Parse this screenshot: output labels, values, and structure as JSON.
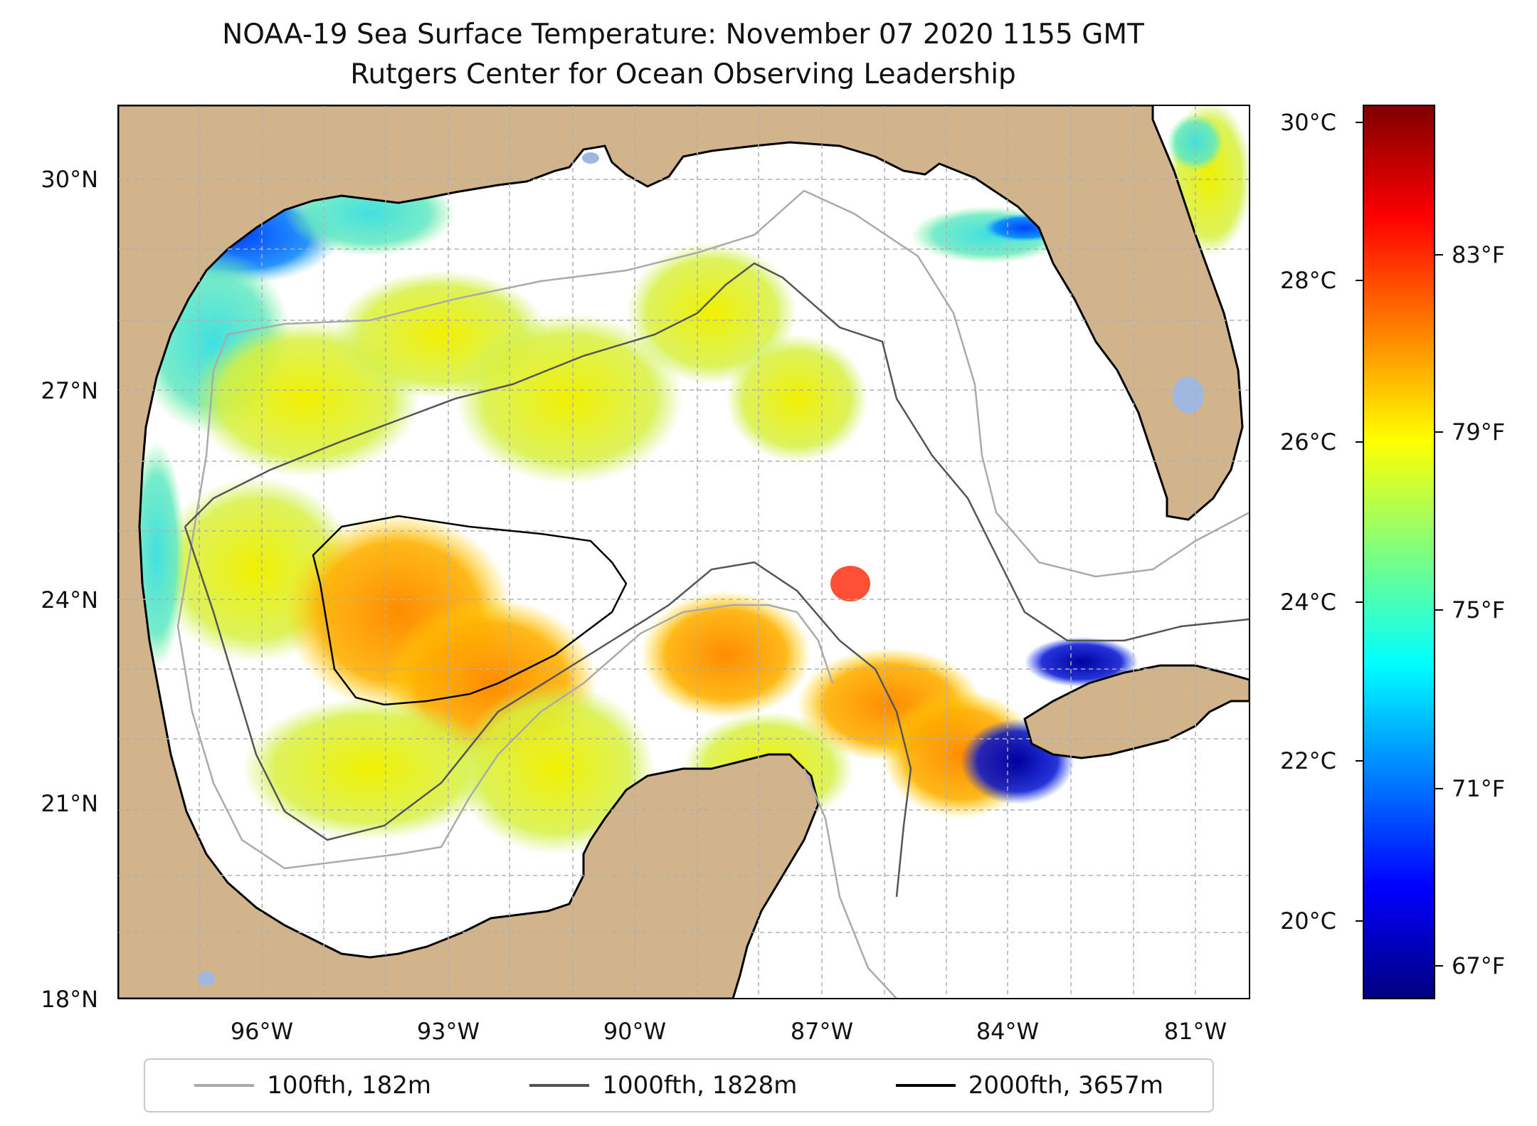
{
  "title": "NOAA-19 Sea Surface Temperature: November 07 2020 1155 GMT",
  "subtitle": "Rutgers Center for Ocean Observing Leadership",
  "lat_labels": [
    {
      "label": "30°N",
      "lat": 30
    },
    {
      "label": "27°N",
      "lat": 27
    },
    {
      "label": "24°N",
      "lat": 24
    },
    {
      "label": "21°N",
      "lat": 21
    },
    {
      "label": "18°N",
      "lat": 18
    }
  ],
  "lon_labels": [
    {
      "label": "96°W",
      "lon": -96
    },
    {
      "label": "93°W",
      "lon": -93
    },
    {
      "label": "90°W",
      "lon": -90
    },
    {
      "label": "87°W",
      "lon": -87
    },
    {
      "label": "84°W",
      "lon": -84
    },
    {
      "label": "81°W",
      "lon": -81
    }
  ],
  "extent": {
    "lon_min": -98.3,
    "lon_max": -80.2,
    "lat_min": 18,
    "lat_max": 31
  },
  "colorbar": {
    "range_c": [
      19,
      30.2
    ],
    "celsius_ticks": [
      {
        "label": "30°C",
        "value": 30
      },
      {
        "label": "28°C",
        "value": 28
      },
      {
        "label": "26°C",
        "value": 26
      },
      {
        "label": "24°C",
        "value": 24
      },
      {
        "label": "22°C",
        "value": 22
      },
      {
        "label": "20°C",
        "value": 20
      }
    ],
    "fahrenheit_ticks": [
      {
        "label": "83°F",
        "value_f": 83
      },
      {
        "label": "79°F",
        "value_f": 79
      },
      {
        "label": "75°F",
        "value_f": 75
      },
      {
        "label": "71°F",
        "value_f": 71
      },
      {
        "label": "67°F",
        "value_f": 67
      }
    ],
    "colormap": [
      "#00007f",
      "#0000ff",
      "#007fff",
      "#00ffff",
      "#7fff7f",
      "#ffff00",
      "#ff7f00",
      "#ff0000",
      "#7f0000"
    ]
  },
  "legend": [
    {
      "label": "100fth, 182m",
      "color": "#aaaaaa"
    },
    {
      "label": "1000fth, 1828m",
      "color": "#555555"
    },
    {
      "label": "2000fth, 3657m",
      "color": "#000000"
    }
  ],
  "colors": {
    "land": "#d2b48c",
    "ocean_nodata": "#ffffff",
    "lakes": "#9fb8e0",
    "gridline": "#b0b0b0"
  }
}
